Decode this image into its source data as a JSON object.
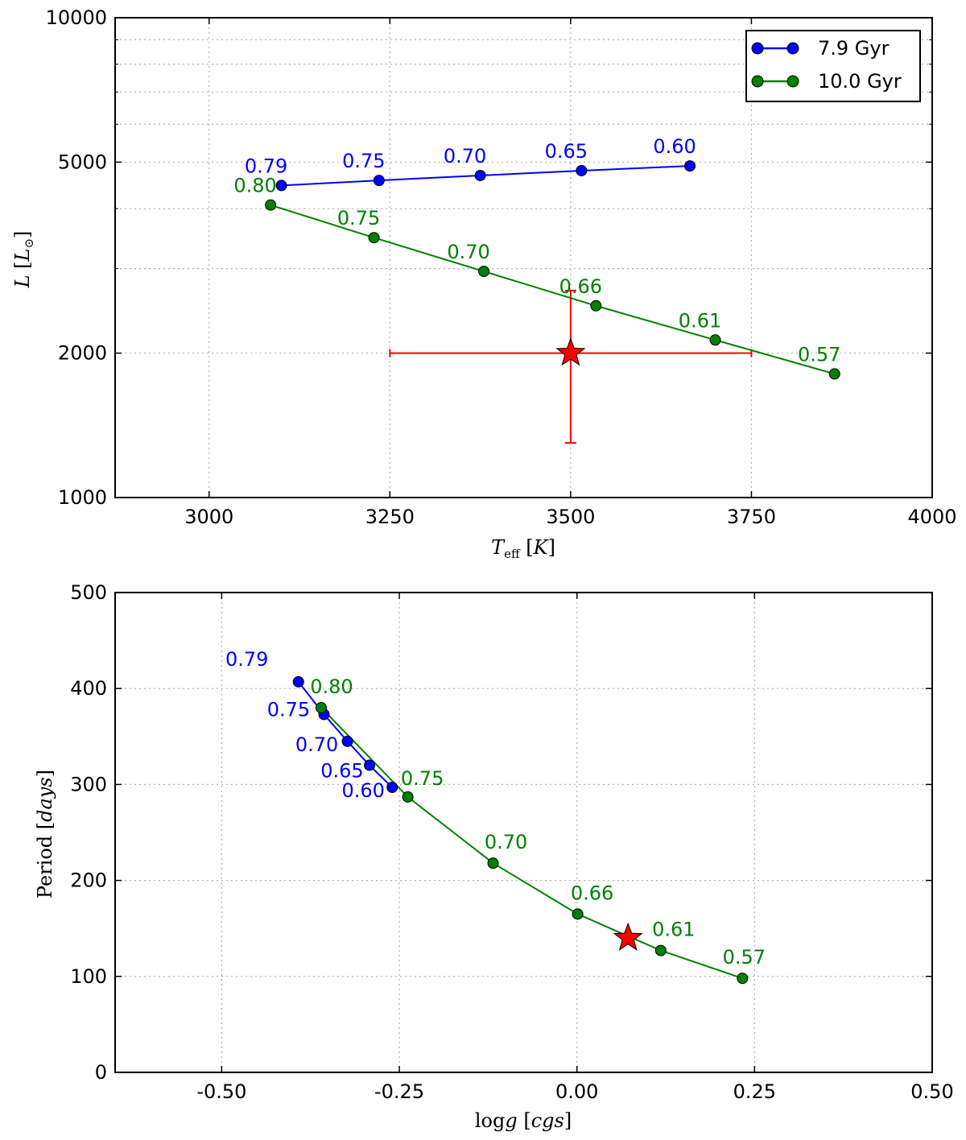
{
  "chart_data": [
    {
      "type": "line",
      "panel": "top",
      "xlabel_main": "T",
      "xlabel_sub": "eff",
      "xlabel_unit": "K",
      "ylabel_main": "L",
      "ylabel_sub": "⊙",
      "xlim": [
        2870,
        4000
      ],
      "ylim": [
        1000,
        10000
      ],
      "yscale": "log",
      "xticks": [
        3000,
        3250,
        3500,
        3750,
        4000
      ],
      "yticks": [
        1000,
        2000,
        5000,
        10000
      ],
      "legend_position": "top-right",
      "series": [
        {
          "name": "7.9 Gyr",
          "color": "#0000ff",
          "x": [
            3100,
            3235,
            3375,
            3515,
            3665
          ],
          "y": [
            4470,
            4580,
            4690,
            4800,
            4910
          ],
          "labels": [
            "0.79",
            "0.75",
            "0.70",
            "0.65",
            "0.60"
          ]
        },
        {
          "name": "10.0 Gyr",
          "color": "#008000",
          "x": [
            3085,
            3228,
            3380,
            3535,
            3700,
            3865
          ],
          "y": [
            4070,
            3480,
            2960,
            2510,
            2130,
            1810
          ],
          "labels": [
            "0.80",
            "0.75",
            "0.70",
            "0.66",
            "0.61",
            "0.57"
          ]
        }
      ],
      "observed": {
        "x": 3500,
        "y": 2000,
        "x_err": [
          3250,
          3750
        ],
        "y_err": [
          1300,
          2700
        ],
        "color": "#ff0000"
      }
    },
    {
      "type": "line",
      "panel": "bottom",
      "xlabel_main": "log",
      "xlabel_var": "g",
      "xlabel_unit": "cgs",
      "ylabel_main": "Period",
      "ylabel_unit": "days",
      "xlim": [
        -0.65,
        0.5
      ],
      "ylim": [
        0,
        500
      ],
      "xticks": [
        -0.5,
        -0.25,
        0.0,
        0.25,
        0.5
      ],
      "xtick_labels": [
        "-0.50",
        "-0.25",
        "0.00",
        "0.25",
        "0.50"
      ],
      "yticks": [
        0,
        100,
        200,
        300,
        400,
        500
      ],
      "series": [
        {
          "name": "7.9 Gyr",
          "color": "#0000ff",
          "x": [
            -0.392,
            -0.356,
            -0.323,
            -0.292,
            -0.26
          ],
          "y": [
            407,
            373,
            345,
            320,
            297
          ],
          "labels": [
            "0.79",
            "0.75",
            "0.70",
            "0.65",
            "0.60"
          ]
        },
        {
          "name": "10.0 Gyr",
          "color": "#008000",
          "x": [
            -0.36,
            -0.238,
            -0.118,
            0.001,
            0.118,
            0.233
          ],
          "y": [
            380,
            287,
            218,
            165,
            127,
            98
          ],
          "labels": [
            "0.80",
            "0.75",
            "0.70",
            "0.66",
            "0.61",
            "0.57"
          ]
        }
      ],
      "observed": {
        "x": 0.072,
        "y": 140,
        "color": "#ff0000"
      }
    }
  ]
}
